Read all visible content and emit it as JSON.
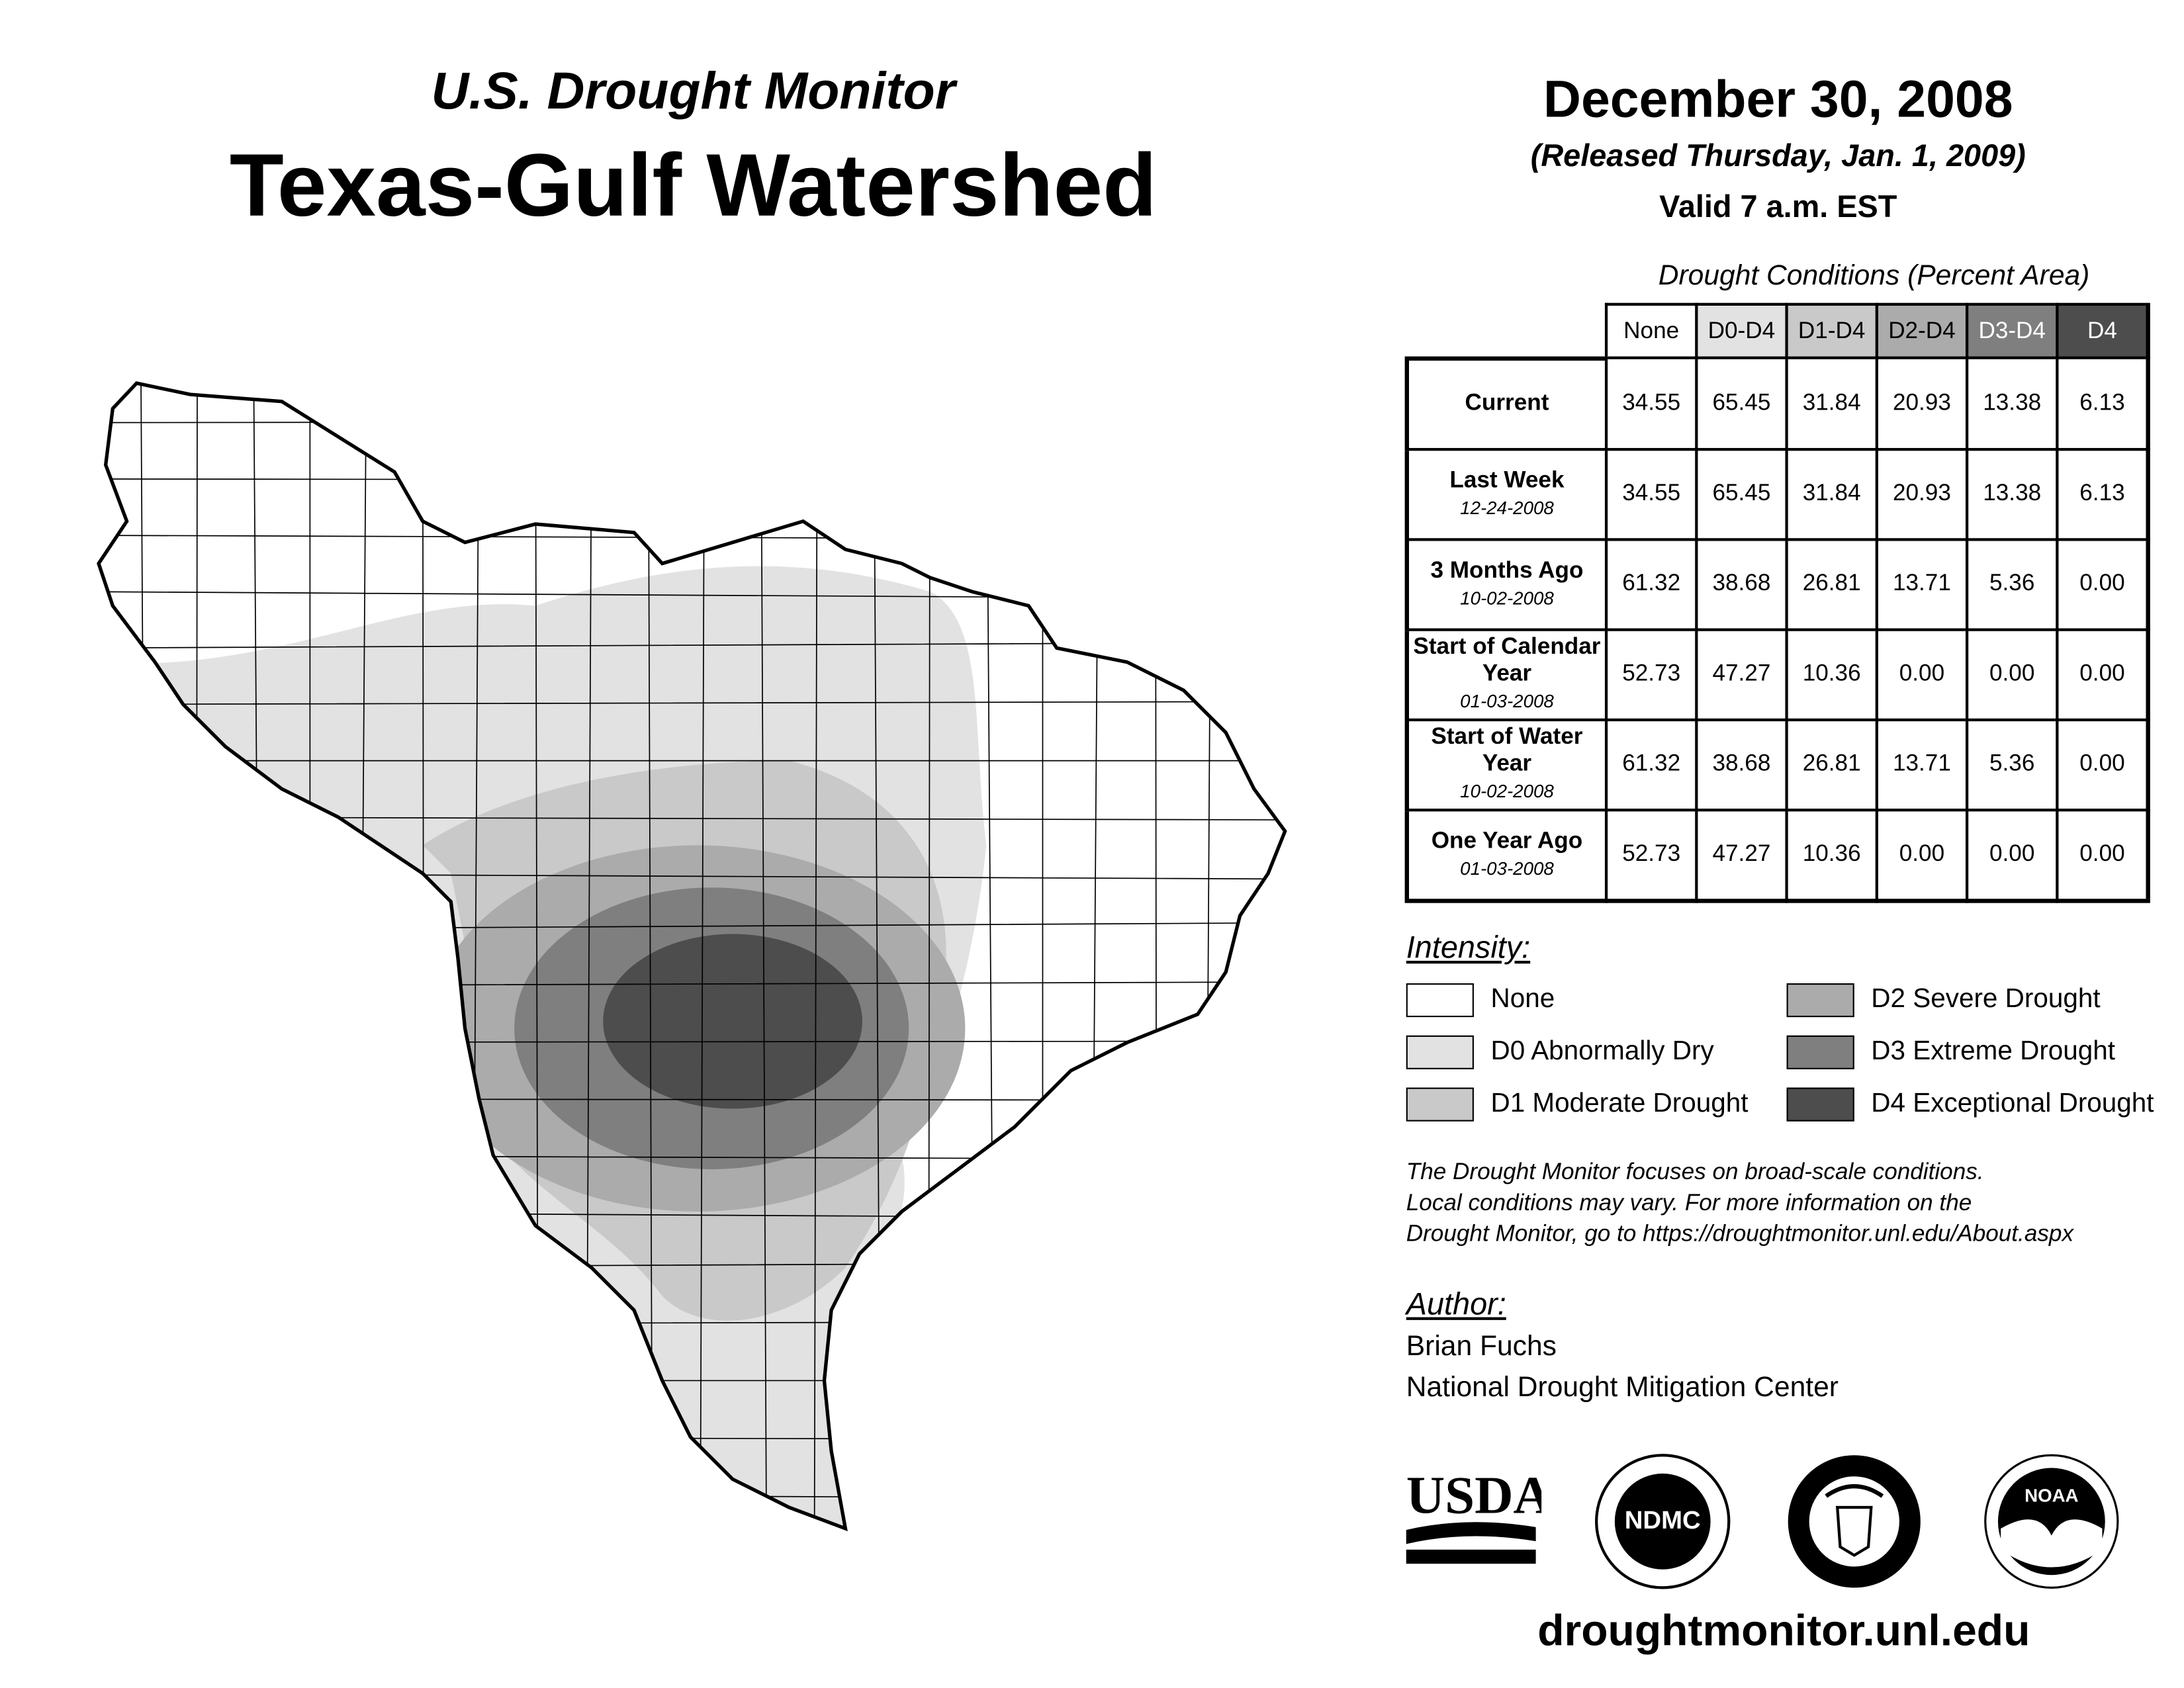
{
  "header": {
    "supertitle": "U.S. Drought Monitor",
    "title": "Texas-Gulf Watershed",
    "date": "December 30, 2008",
    "released": "(Released Thursday, Jan. 1, 2009)",
    "valid": "Valid 7 a.m. EST"
  },
  "table": {
    "caption": "Drought Conditions (Percent Area)",
    "columns": [
      "None",
      "D0-D4",
      "D1-D4",
      "D2-D4",
      "D3-D4",
      "D4"
    ],
    "rows": [
      {
        "label": "Current",
        "date": "",
        "values": [
          "34.55",
          "65.45",
          "31.84",
          "20.93",
          "13.38",
          "6.13"
        ]
      },
      {
        "label": "Last Week",
        "date": "12-24-2008",
        "values": [
          "34.55",
          "65.45",
          "31.84",
          "20.93",
          "13.38",
          "6.13"
        ]
      },
      {
        "label": "3 Months Ago",
        "date": "10-02-2008",
        "values": [
          "61.32",
          "38.68",
          "26.81",
          "13.71",
          "5.36",
          "0.00"
        ]
      },
      {
        "label": "Start of Calendar Year",
        "date": "01-03-2008",
        "values": [
          "52.73",
          "47.27",
          "10.36",
          "0.00",
          "0.00",
          "0.00"
        ]
      },
      {
        "label": "Start of Water Year",
        "date": "10-02-2008",
        "values": [
          "61.32",
          "38.68",
          "26.81",
          "13.71",
          "5.36",
          "0.00"
        ]
      },
      {
        "label": "One Year Ago",
        "date": "01-03-2008",
        "values": [
          "52.73",
          "47.27",
          "10.36",
          "0.00",
          "0.00",
          "0.00"
        ]
      }
    ]
  },
  "legend": {
    "title": "Intensity:",
    "items": [
      {
        "label": "None",
        "color": "#ffffff"
      },
      {
        "label": "D0 Abnormally Dry",
        "color": "#e2e2e2"
      },
      {
        "label": "D1 Moderate Drought",
        "color": "#c9c9c9"
      },
      {
        "label": "D2 Severe Drought",
        "color": "#ababab"
      },
      {
        "label": "D3 Extreme Drought",
        "color": "#7f7f7f"
      },
      {
        "label": "D4 Exceptional Drought",
        "color": "#4d4d4d"
      }
    ]
  },
  "note": [
    "The Drought Monitor focuses on broad-scale conditions.",
    "Local conditions may vary. For more information on the",
    "Drought Monitor, go to https://droughtmonitor.unl.edu/About.aspx"
  ],
  "author": {
    "title": "Author:",
    "name": "Brian Fuchs",
    "org": "National Drought Mitigation Center"
  },
  "logos": {
    "usda": "USDA",
    "ndmc": "NDMC",
    "noaa": "NOAA"
  },
  "footer_url": "droughtmonitor.unl.edu"
}
